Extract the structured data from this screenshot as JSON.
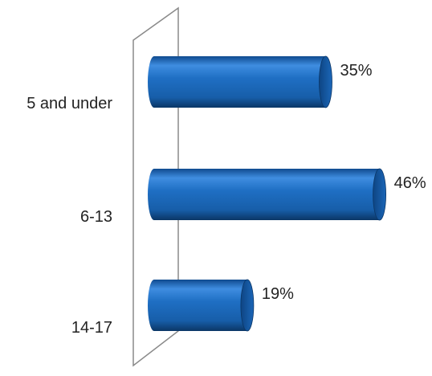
{
  "chart_data": {
    "type": "bar",
    "orientation": "horizontal",
    "style": "3d-cylinder",
    "categories": [
      "5 and under",
      "6-13",
      "14-17"
    ],
    "values": [
      35,
      46,
      19
    ],
    "value_labels": [
      "35%",
      "46%",
      "19%"
    ],
    "title": "",
    "xlabel": "",
    "ylabel": "",
    "xlim": [
      0,
      50
    ],
    "grid": false,
    "legend": "none",
    "colors": {
      "bar": "#1f6fc4",
      "bar_dark": "#0d3f7a",
      "bar_light": "#5fa3ea",
      "wall": "#888888",
      "text": "#222222"
    }
  }
}
